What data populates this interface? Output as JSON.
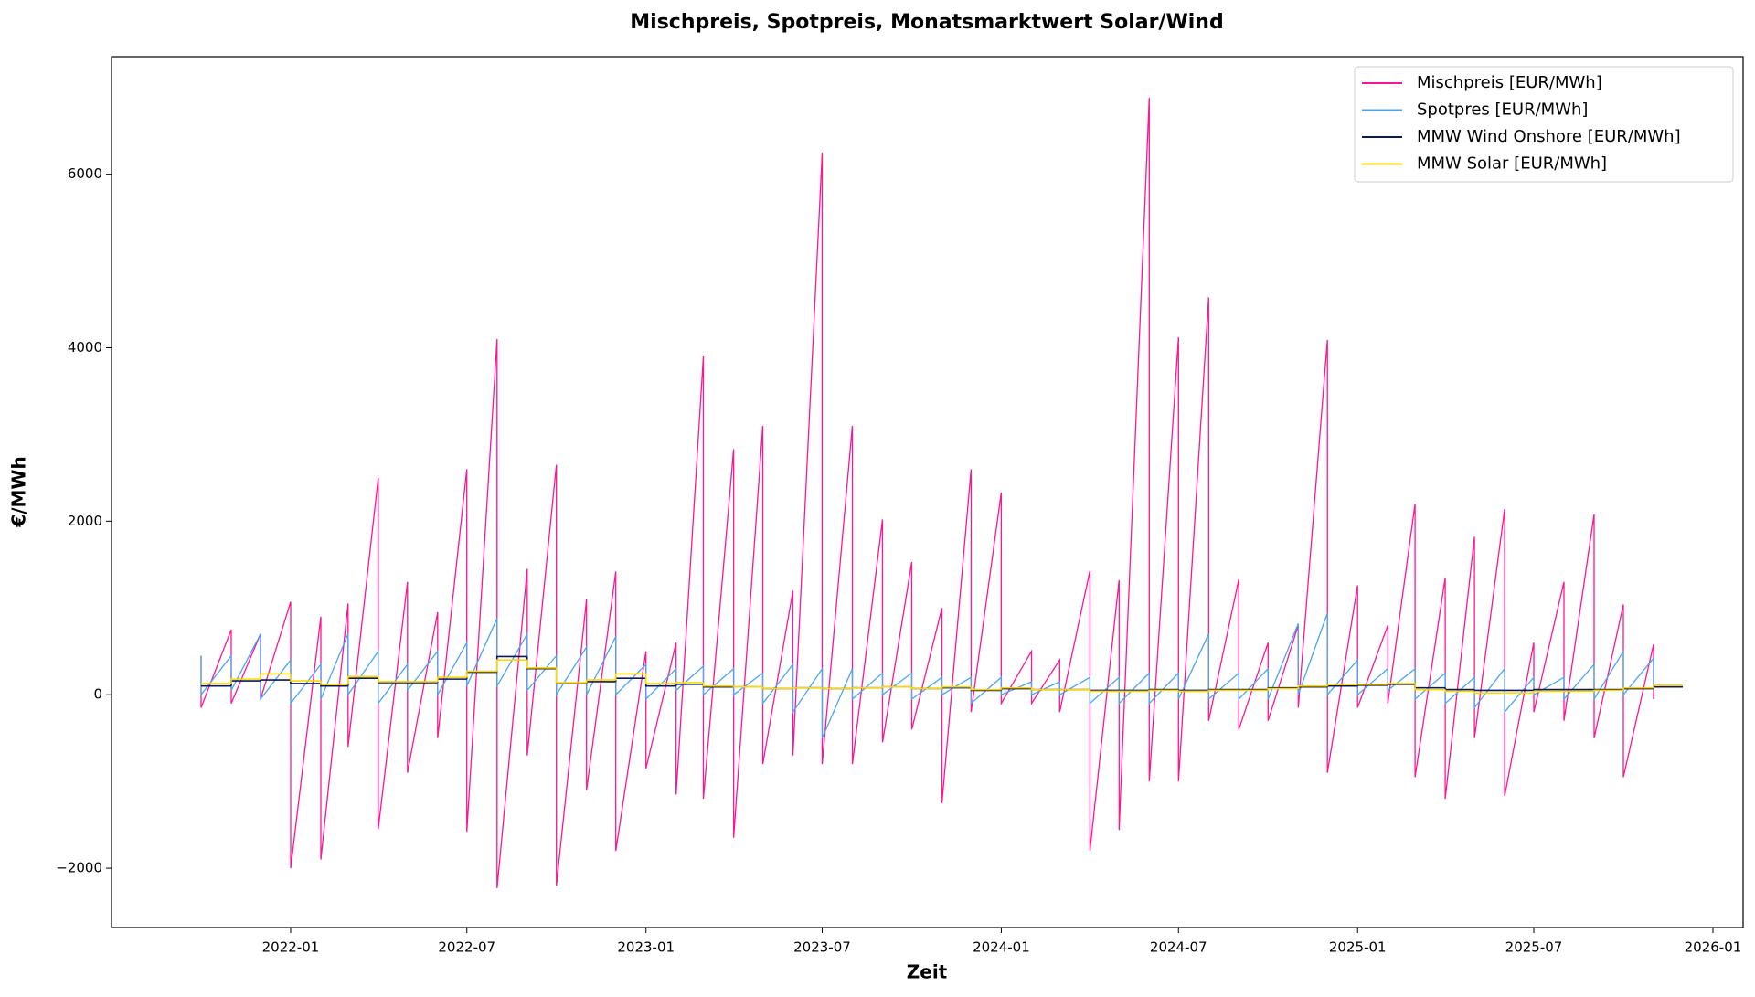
{
  "chart_data": {
    "type": "line",
    "title": "Mischpreis, Spotpreis, Monatsmarktwert Solar/Wind",
    "xlabel": "Zeit",
    "ylabel": "€/MWh",
    "x": [
      "2021-10",
      "2021-10",
      "2021-11",
      "2021-11",
      "2021-12",
      "2021-12",
      "2022-01",
      "2022-01",
      "2022-02",
      "2022-02",
      "2022-03",
      "2022-03",
      "2022-04",
      "2022-04",
      "2022-05",
      "2022-05",
      "2022-06",
      "2022-06",
      "2022-07",
      "2022-07",
      "2022-08",
      "2022-08",
      "2022-09",
      "2022-09",
      "2022-10",
      "2022-10",
      "2022-11",
      "2022-11",
      "2022-12",
      "2022-12",
      "2023-01",
      "2023-01",
      "2023-02",
      "2023-02",
      "2023-03",
      "2023-03",
      "2023-04",
      "2023-04",
      "2023-05",
      "2023-05",
      "2023-06",
      "2023-06",
      "2023-07",
      "2023-07",
      "2023-08",
      "2023-08",
      "2023-09",
      "2023-09",
      "2023-10",
      "2023-10",
      "2023-11",
      "2023-11",
      "2023-12",
      "2023-12",
      "2024-01",
      "2024-01",
      "2024-02",
      "2024-02",
      "2024-03",
      "2024-03",
      "2024-04",
      "2024-04",
      "2024-05",
      "2024-05",
      "2024-06",
      "2024-06",
      "2024-07",
      "2024-07",
      "2024-08",
      "2024-08",
      "2024-09",
      "2024-09",
      "2024-10",
      "2024-10",
      "2024-11",
      "2024-11",
      "2024-12",
      "2024-12",
      "2025-01",
      "2025-01",
      "2025-02",
      "2025-02",
      "2025-03",
      "2025-03",
      "2025-04",
      "2025-04",
      "2025-05",
      "2025-05",
      "2025-06",
      "2025-06",
      "2025-07",
      "2025-07",
      "2025-08",
      "2025-08",
      "2025-09",
      "2025-09",
      "2025-10",
      "2025-10",
      "2025-11",
      "2025-11"
    ],
    "series": [
      {
        "name": "Mischpreis [EUR/MWh]",
        "color": "#ff1493",
        "values": [
          450,
          -150,
          750,
          -100,
          700,
          -50,
          1070,
          -2000,
          900,
          -1900,
          1050,
          -600,
          2500,
          -1550,
          1300,
          -900,
          950,
          -500,
          2600,
          -1580,
          4100,
          -2230,
          1450,
          -700,
          2650,
          -2200,
          1100,
          -1100,
          1420,
          -1800,
          500,
          -850,
          600,
          -1150,
          3900,
          -1200,
          2830,
          -1650,
          3100,
          -800,
          1200,
          -700,
          6250,
          -800,
          3100,
          -800,
          2020,
          -550,
          1530,
          -400,
          1000,
          -1250,
          2600,
          -200,
          2330,
          -100,
          500,
          -100,
          400,
          -200,
          1430,
          -1800,
          1320,
          -1560,
          6880,
          -1000,
          4120,
          -1000,
          4580,
          -300,
          1330,
          -400,
          600,
          -300,
          800,
          -150,
          4090,
          -900,
          1260,
          -150,
          800,
          -100,
          2200,
          -950,
          1350,
          -1200,
          1820,
          -500,
          2140,
          -1170,
          600,
          -200,
          1300,
          -300,
          2080,
          -500,
          1040,
          -950,
          580,
          -50
        ]
      },
      {
        "name": "Spotpres [EUR/MWh]",
        "color": "#4da3f5",
        "values": [
          450,
          0,
          450,
          50,
          700,
          -50,
          400,
          -100,
          350,
          -50,
          700,
          0,
          500,
          -100,
          350,
          50,
          500,
          0,
          600,
          100,
          880,
          100,
          700,
          50,
          450,
          0,
          550,
          0,
          670,
          0,
          350,
          -50,
          300,
          50,
          330,
          0,
          300,
          0,
          250,
          -100,
          350,
          -200,
          300,
          -500,
          300,
          -50,
          250,
          0,
          250,
          -50,
          200,
          0,
          200,
          -100,
          200,
          0,
          150,
          0,
          150,
          0,
          200,
          -100,
          200,
          -100,
          250,
          -100,
          250,
          -50,
          700,
          -50,
          250,
          -50,
          300,
          -50,
          820,
          0,
          940,
          0,
          400,
          0,
          300,
          50,
          300,
          -50,
          250,
          -100,
          200,
          -150,
          300,
          -200,
          200,
          0,
          200,
          -50,
          350,
          -50,
          500,
          0,
          420,
          50
        ]
      },
      {
        "name": "MMW Wind Onshore [EUR/MWh]",
        "color": "#0b1a5c",
        "step": true,
        "values": [
          100,
          null,
          160,
          null,
          170,
          null,
          130,
          null,
          100,
          null,
          190,
          null,
          140,
          null,
          140,
          null,
          180,
          null,
          260,
          null,
          440,
          null,
          300,
          null,
          130,
          null,
          150,
          null,
          190,
          null,
          100,
          null,
          120,
          null,
          90,
          null,
          90,
          null,
          70,
          null,
          80,
          null,
          70,
          null,
          80,
          null,
          90,
          null,
          70,
          null,
          80,
          null,
          50,
          null,
          70,
          null,
          60,
          null,
          60,
          null,
          50,
          null,
          50,
          null,
          60,
          null,
          50,
          null,
          60,
          null,
          60,
          null,
          80,
          null,
          90,
          null,
          100,
          null,
          110,
          null,
          120,
          null,
          80,
          null,
          60,
          null,
          50,
          null,
          50,
          null,
          60,
          null,
          60,
          null,
          60,
          null,
          70,
          null,
          90,
          null
        ]
      },
      {
        "name": "MMW Solar [EUR/MWh]",
        "color": "#ffd700",
        "step": true,
        "values": [
          130,
          null,
          180,
          null,
          240,
          null,
          160,
          null,
          120,
          null,
          210,
          null,
          150,
          null,
          150,
          null,
          200,
          null,
          270,
          null,
          400,
          null,
          310,
          null,
          140,
          null,
          170,
          null,
          240,
          null,
          130,
          null,
          140,
          null,
          100,
          null,
          90,
          null,
          70,
          null,
          80,
          null,
          70,
          null,
          80,
          null,
          90,
          null,
          70,
          null,
          90,
          null,
          60,
          null,
          80,
          null,
          60,
          null,
          60,
          null,
          40,
          null,
          40,
          null,
          50,
          null,
          40,
          null,
          50,
          null,
          50,
          null,
          70,
          null,
          100,
          null,
          120,
          null,
          120,
          null,
          130,
          null,
          60,
          null,
          40,
          null,
          20,
          null,
          20,
          null,
          40,
          null,
          40,
          null,
          50,
          null,
          80,
          null,
          110,
          null
        ]
      }
    ],
    "xlim": [
      "2021-07",
      "2026-02"
    ],
    "xticks": [
      "2022-01",
      "2022-07",
      "2023-01",
      "2023-07",
      "2024-01",
      "2024-07",
      "2025-01",
      "2025-07",
      "2026-01"
    ],
    "ylim": [
      -2684,
      7355
    ],
    "yticks": [
      {
        "value": -2000,
        "label": "−2000"
      },
      0,
      2000,
      4000,
      6000
    ],
    "legend": "upper right",
    "grid": false
  }
}
